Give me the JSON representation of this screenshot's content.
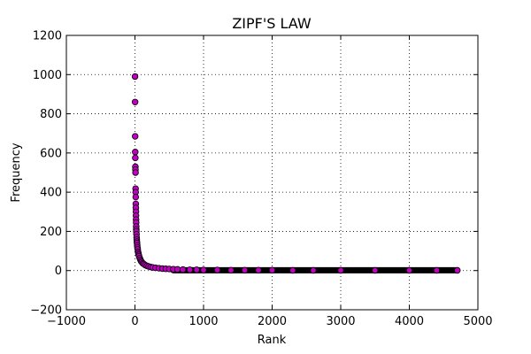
{
  "chart_data": {
    "type": "scatter",
    "title": "ZIPF'S LAW",
    "xlabel": "Rank",
    "ylabel": "Frequency",
    "xlim": [
      -1000,
      5000
    ],
    "ylim": [
      -200,
      1200
    ],
    "xticks": [
      -1000,
      0,
      1000,
      2000,
      3000,
      4000,
      5000
    ],
    "yticks": [
      -200,
      0,
      200,
      400,
      600,
      800,
      1000,
      1200
    ],
    "xtick_labels": [
      "−1000",
      "0",
      "1000",
      "2000",
      "3000",
      "4000",
      "5000"
    ],
    "ytick_labels": [
      "−200",
      "0",
      "200",
      "400",
      "600",
      "800",
      "1000",
      "1200"
    ],
    "grid": true,
    "marker_color": "#bf00bf",
    "marker_edge": "#000000",
    "series": [
      {
        "points": [
          [
            1,
            990
          ],
          [
            2,
            860
          ],
          [
            3,
            685
          ],
          [
            4,
            605
          ],
          [
            5,
            575
          ],
          [
            6,
            530
          ],
          [
            7,
            515
          ],
          [
            8,
            500
          ],
          [
            9,
            418
          ],
          [
            10,
            400
          ],
          [
            11,
            375
          ],
          [
            12,
            340
          ],
          [
            13,
            320
          ],
          [
            14,
            300
          ],
          [
            15,
            280
          ],
          [
            16,
            260
          ],
          [
            17,
            245
          ],
          [
            18,
            225
          ],
          [
            19,
            210
          ],
          [
            20,
            200
          ],
          [
            22,
            185
          ],
          [
            24,
            170
          ],
          [
            26,
            158
          ],
          [
            28,
            148
          ],
          [
            30,
            140
          ],
          [
            33,
            128
          ],
          [
            36,
            118
          ],
          [
            40,
            108
          ],
          [
            45,
            96
          ],
          [
            50,
            88
          ],
          [
            55,
            80
          ],
          [
            60,
            73
          ],
          [
            70,
            63
          ],
          [
            80,
            55
          ],
          [
            90,
            48
          ],
          [
            100,
            43
          ],
          [
            115,
            37
          ],
          [
            130,
            33
          ],
          [
            150,
            28
          ],
          [
            175,
            24
          ],
          [
            200,
            21
          ],
          [
            230,
            18
          ],
          [
            260,
            16
          ],
          [
            300,
            14
          ],
          [
            350,
            12
          ],
          [
            400,
            10
          ],
          [
            450,
            9
          ],
          [
            500,
            8
          ],
          [
            560,
            7
          ],
          [
            620,
            6
          ],
          [
            700,
            5
          ],
          [
            800,
            4
          ],
          [
            900,
            4
          ],
          [
            1000,
            3
          ],
          [
            1200,
            3
          ],
          [
            1400,
            2
          ],
          [
            1600,
            2
          ],
          [
            1800,
            2
          ],
          [
            2000,
            2
          ],
          [
            2300,
            1
          ],
          [
            2600,
            1
          ],
          [
            3000,
            1
          ],
          [
            3500,
            1
          ],
          [
            4000,
            1
          ],
          [
            4400,
            1
          ],
          [
            4700,
            1
          ]
        ]
      }
    ]
  }
}
